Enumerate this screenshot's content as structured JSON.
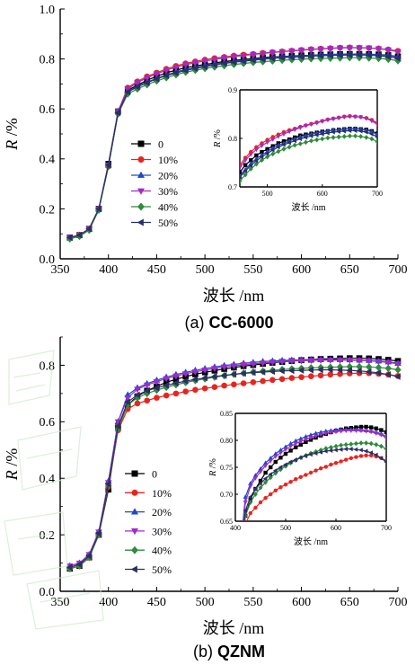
{
  "chart_data": [
    {
      "type": "line",
      "caption_prefix": "(a)",
      "caption_name": "CC-6000",
      "xlabel": "波长 /nm",
      "ylabel_italic": "R",
      "ylabel_unit": " /%",
      "xlim": [
        350,
        700
      ],
      "ylim": [
        0.0,
        1.0
      ],
      "xticks": [
        "350",
        "400",
        "450",
        "500",
        "550",
        "600",
        "650",
        "700"
      ],
      "yticks": [
        "0.0",
        "0.2",
        "0.4",
        "0.6",
        "0.8",
        "1.0"
      ],
      "legend_position": "center-left",
      "x": [
        360,
        370,
        380,
        390,
        400,
        410,
        420,
        430,
        440,
        450,
        460,
        470,
        480,
        490,
        500,
        510,
        520,
        530,
        540,
        550,
        560,
        570,
        580,
        590,
        600,
        610,
        620,
        630,
        640,
        650,
        660,
        670,
        680,
        690,
        700
      ],
      "series": [
        {
          "name": "0",
          "color": "#000000",
          "marker": "square",
          "values": [
            0.085,
            0.095,
            0.12,
            0.2,
            0.38,
            0.59,
            0.675,
            0.695,
            0.715,
            0.73,
            0.745,
            0.755,
            0.765,
            0.772,
            0.778,
            0.784,
            0.79,
            0.794,
            0.798,
            0.802,
            0.806,
            0.808,
            0.81,
            0.812,
            0.814,
            0.815,
            0.817,
            0.818,
            0.819,
            0.82,
            0.82,
            0.819,
            0.818,
            0.815,
            0.81
          ]
        },
        {
          "name": "10%",
          "color": "#e8241f",
          "marker": "circle",
          "values": [
            0.085,
            0.095,
            0.12,
            0.2,
            0.37,
            0.59,
            0.685,
            0.71,
            0.73,
            0.745,
            0.76,
            0.772,
            0.782,
            0.79,
            0.797,
            0.803,
            0.808,
            0.813,
            0.817,
            0.82,
            0.824,
            0.827,
            0.83,
            0.833,
            0.836,
            0.839,
            0.841,
            0.843,
            0.845,
            0.846,
            0.845,
            0.844,
            0.842,
            0.838,
            0.832
          ]
        },
        {
          "name": "20%",
          "color": "#1f48c8",
          "marker": "triangle-up",
          "values": [
            0.085,
            0.095,
            0.12,
            0.2,
            0.375,
            0.59,
            0.672,
            0.69,
            0.708,
            0.722,
            0.736,
            0.748,
            0.758,
            0.766,
            0.773,
            0.78,
            0.786,
            0.79,
            0.795,
            0.799,
            0.803,
            0.806,
            0.809,
            0.811,
            0.813,
            0.815,
            0.817,
            0.818,
            0.819,
            0.82,
            0.82,
            0.819,
            0.817,
            0.814,
            0.808
          ]
        },
        {
          "name": "30%",
          "color": "#a12bc7",
          "marker": "triangle-down",
          "values": [
            0.085,
            0.095,
            0.12,
            0.2,
            0.375,
            0.59,
            0.68,
            0.705,
            0.725,
            0.74,
            0.755,
            0.767,
            0.777,
            0.785,
            0.792,
            0.798,
            0.804,
            0.809,
            0.814,
            0.818,
            0.822,
            0.826,
            0.829,
            0.832,
            0.835,
            0.838,
            0.84,
            0.842,
            0.844,
            0.845,
            0.845,
            0.844,
            0.841,
            0.836,
            0.829
          ]
        },
        {
          "name": "40%",
          "color": "#2e8b3a",
          "marker": "diamond",
          "values": [
            0.08,
            0.09,
            0.115,
            0.195,
            0.37,
            0.58,
            0.66,
            0.68,
            0.697,
            0.712,
            0.725,
            0.737,
            0.747,
            0.755,
            0.762,
            0.768,
            0.773,
            0.778,
            0.782,
            0.786,
            0.789,
            0.792,
            0.795,
            0.797,
            0.799,
            0.801,
            0.802,
            0.803,
            0.804,
            0.805,
            0.805,
            0.804,
            0.802,
            0.799,
            0.793
          ]
        },
        {
          "name": "50%",
          "color": "#2a2f66",
          "marker": "triangle-left",
          "values": [
            0.085,
            0.095,
            0.12,
            0.2,
            0.375,
            0.585,
            0.668,
            0.688,
            0.705,
            0.72,
            0.733,
            0.744,
            0.754,
            0.762,
            0.769,
            0.776,
            0.782,
            0.787,
            0.791,
            0.795,
            0.799,
            0.802,
            0.805,
            0.807,
            0.809,
            0.811,
            0.813,
            0.814,
            0.815,
            0.816,
            0.816,
            0.815,
            0.813,
            0.809,
            0.803
          ]
        }
      ],
      "inset": {
        "xlabel": "波长 /nm",
        "ylabel_italic": "R",
        "ylabel_unit": " /%",
        "xlim": [
          450,
          700
        ],
        "ylim": [
          0.7,
          0.9
        ],
        "xticks": [
          "500",
          "600",
          "700"
        ],
        "yticks": [
          "0.7",
          "0.8",
          "0.9"
        ]
      }
    },
    {
      "type": "line",
      "caption_prefix": "(b)",
      "caption_name": "QZNM",
      "xlabel": "波长 /nm",
      "ylabel_italic": "R",
      "ylabel_unit": " /%",
      "xlim": [
        350,
        700
      ],
      "ylim": [
        0.0,
        0.9
      ],
      "xticks": [
        "350",
        "400",
        "450",
        "500",
        "550",
        "600",
        "650",
        "700"
      ],
      "yticks": [
        "0.0",
        "0.2",
        "0.4",
        "0.6",
        "0.8"
      ],
      "legend_position": "bottom-left",
      "x": [
        360,
        370,
        380,
        390,
        400,
        410,
        420,
        430,
        440,
        450,
        460,
        470,
        480,
        490,
        500,
        510,
        520,
        530,
        540,
        550,
        560,
        570,
        580,
        590,
        600,
        610,
        620,
        630,
        640,
        650,
        660,
        670,
        680,
        690,
        700
      ],
      "series": [
        {
          "name": "0",
          "color": "#000000",
          "marker": "square",
          "values": [
            0.08,
            0.09,
            0.12,
            0.2,
            0.36,
            0.58,
            0.66,
            0.69,
            0.71,
            0.725,
            0.74,
            0.75,
            0.76,
            0.768,
            0.775,
            0.781,
            0.787,
            0.792,
            0.797,
            0.801,
            0.805,
            0.809,
            0.812,
            0.815,
            0.818,
            0.82,
            0.822,
            0.823,
            0.824,
            0.825,
            0.825,
            0.824,
            0.822,
            0.819,
            0.815
          ]
        },
        {
          "name": "10%",
          "color": "#e8241f",
          "marker": "circle",
          "values": [
            0.08,
            0.09,
            0.12,
            0.2,
            0.37,
            0.57,
            0.645,
            0.665,
            0.675,
            0.685,
            0.693,
            0.7,
            0.707,
            0.713,
            0.718,
            0.723,
            0.728,
            0.732,
            0.736,
            0.74,
            0.744,
            0.748,
            0.751,
            0.755,
            0.758,
            0.761,
            0.764,
            0.767,
            0.769,
            0.771,
            0.772,
            0.772,
            0.77,
            0.767,
            0.762
          ]
        },
        {
          "name": "20%",
          "color": "#1f48c8",
          "marker": "triangle-up",
          "values": [
            0.09,
            0.1,
            0.13,
            0.21,
            0.39,
            0.6,
            0.695,
            0.72,
            0.735,
            0.747,
            0.758,
            0.767,
            0.775,
            0.782,
            0.788,
            0.794,
            0.799,
            0.803,
            0.807,
            0.81,
            0.813,
            0.815,
            0.817,
            0.818,
            0.819,
            0.82,
            0.82,
            0.82,
            0.82,
            0.819,
            0.818,
            0.817,
            0.815,
            0.812,
            0.807
          ]
        },
        {
          "name": "30%",
          "color": "#a12bc7",
          "marker": "triangle-down",
          "values": [
            0.09,
            0.1,
            0.13,
            0.21,
            0.385,
            0.6,
            0.685,
            0.715,
            0.73,
            0.742,
            0.753,
            0.762,
            0.77,
            0.777,
            0.783,
            0.789,
            0.794,
            0.798,
            0.802,
            0.805,
            0.808,
            0.811,
            0.813,
            0.815,
            0.816,
            0.817,
            0.818,
            0.818,
            0.818,
            0.818,
            0.817,
            0.816,
            0.813,
            0.81,
            0.805
          ]
        },
        {
          "name": "40%",
          "color": "#2e8b3a",
          "marker": "diamond",
          "values": [
            0.08,
            0.09,
            0.12,
            0.2,
            0.375,
            0.575,
            0.66,
            0.685,
            0.7,
            0.712,
            0.722,
            0.731,
            0.739,
            0.746,
            0.752,
            0.758,
            0.763,
            0.768,
            0.772,
            0.776,
            0.779,
            0.782,
            0.785,
            0.787,
            0.789,
            0.791,
            0.792,
            0.793,
            0.794,
            0.795,
            0.795,
            0.794,
            0.792,
            0.789,
            0.784
          ]
        },
        {
          "name": "50%",
          "color": "#2a2f66",
          "marker": "triangle-left",
          "values": [
            0.085,
            0.095,
            0.125,
            0.205,
            0.38,
            0.585,
            0.67,
            0.695,
            0.71,
            0.72,
            0.729,
            0.737,
            0.744,
            0.75,
            0.755,
            0.76,
            0.764,
            0.768,
            0.771,
            0.774,
            0.776,
            0.778,
            0.78,
            0.781,
            0.782,
            0.783,
            0.784,
            0.784,
            0.783,
            0.782,
            0.78,
            0.777,
            0.773,
            0.767,
            0.76
          ]
        }
      ],
      "inset": {
        "xlabel": "波长 /nm",
        "ylabel_italic": "R",
        "ylabel_unit": " /%",
        "xlim": [
          400,
          700
        ],
        "ylim": [
          0.65,
          0.85
        ],
        "xticks": [
          "400",
          "500",
          "600",
          "700"
        ],
        "yticks": [
          "0.65",
          "0.70",
          "0.75",
          "0.80",
          "0.85"
        ]
      }
    }
  ]
}
